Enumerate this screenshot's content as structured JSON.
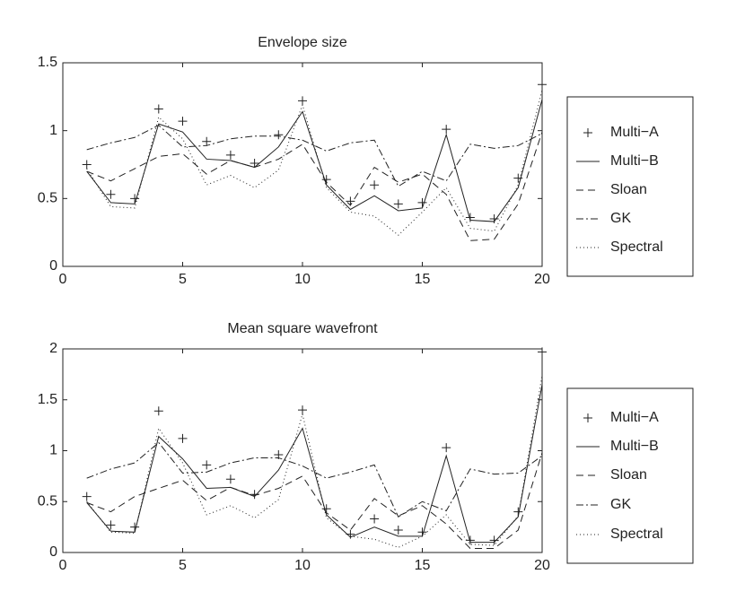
{
  "chart_data": [
    {
      "type": "line",
      "title": "Envelope size",
      "x": [
        1,
        2,
        3,
        4,
        5,
        6,
        7,
        8,
        9,
        10,
        11,
        12,
        13,
        14,
        15,
        16,
        17,
        18,
        19,
        20
      ],
      "xlim": [
        0,
        20
      ],
      "xticks": [
        0,
        5,
        10,
        15,
        20
      ],
      "ylim": [
        0,
        1.5
      ],
      "yticks": [
        0,
        0.5,
        1,
        1.5
      ],
      "legend": "outside-right",
      "series": [
        {
          "name": "Multi−A",
          "color": "#222222",
          "style": "plus",
          "values": [
            0.75,
            0.53,
            0.5,
            1.16,
            1.07,
            0.92,
            0.82,
            0.76,
            0.97,
            1.22,
            0.64,
            0.48,
            0.6,
            0.46,
            0.47,
            1.01,
            0.36,
            0.35,
            0.65,
            1.34
          ]
        },
        {
          "name": "Multi−B",
          "color": "#222222",
          "style": "solid",
          "values": [
            0.7,
            0.47,
            0.46,
            1.05,
            0.99,
            0.79,
            0.78,
            0.73,
            0.88,
            1.14,
            0.6,
            0.42,
            0.52,
            0.41,
            0.43,
            0.97,
            0.34,
            0.33,
            0.58,
            1.23
          ]
        },
        {
          "name": "Sloan",
          "color": "#222222",
          "style": "dashed",
          "values": [
            0.7,
            0.63,
            0.72,
            0.81,
            0.83,
            0.68,
            0.78,
            0.73,
            0.79,
            0.9,
            0.62,
            0.45,
            0.73,
            0.62,
            0.68,
            0.53,
            0.19,
            0.2,
            0.46,
            0.99
          ]
        },
        {
          "name": "GK",
          "color": "#222222",
          "style": "dashdot",
          "values": [
            0.86,
            0.91,
            0.95,
            1.04,
            0.88,
            0.89,
            0.94,
            0.96,
            0.96,
            0.93,
            0.85,
            0.91,
            0.93,
            0.59,
            0.7,
            0.63,
            0.9,
            0.87,
            0.89,
            0.98
          ]
        },
        {
          "name": "Spectral",
          "color": "#222222",
          "style": "dotted",
          "values": [
            0.72,
            0.44,
            0.43,
            1.1,
            0.94,
            0.6,
            0.67,
            0.58,
            0.71,
            1.19,
            0.58,
            0.4,
            0.37,
            0.23,
            0.4,
            0.58,
            0.28,
            0.26,
            0.6,
            1.3
          ]
        }
      ]
    },
    {
      "type": "line",
      "title": "Mean square wavefront",
      "x": [
        1,
        2,
        3,
        4,
        5,
        6,
        7,
        8,
        9,
        10,
        11,
        12,
        13,
        14,
        15,
        16,
        17,
        18,
        19,
        20
      ],
      "xlim": [
        0,
        20
      ],
      "xticks": [
        0,
        5,
        10,
        15,
        20
      ],
      "ylim": [
        0,
        2
      ],
      "yticks": [
        0,
        0.5,
        1,
        1.5,
        2
      ],
      "legend": "outside-right",
      "series": [
        {
          "name": "Multi−A",
          "color": "#222222",
          "style": "plus",
          "values": [
            0.55,
            0.27,
            0.25,
            1.39,
            1.12,
            0.86,
            0.72,
            0.57,
            0.96,
            1.4,
            0.43,
            0.18,
            0.33,
            0.22,
            0.2,
            1.03,
            0.12,
            0.12,
            0.4,
            1.97
          ]
        },
        {
          "name": "Multi−B",
          "color": "#222222",
          "style": "solid",
          "values": [
            0.49,
            0.21,
            0.2,
            1.14,
            0.92,
            0.63,
            0.64,
            0.55,
            0.81,
            1.22,
            0.37,
            0.15,
            0.25,
            0.16,
            0.16,
            0.95,
            0.1,
            0.1,
            0.35,
            1.65
          ]
        },
        {
          "name": "Sloan",
          "color": "#222222",
          "style": "dashed",
          "values": [
            0.49,
            0.4,
            0.55,
            0.63,
            0.71,
            0.51,
            0.64,
            0.56,
            0.63,
            0.75,
            0.39,
            0.22,
            0.53,
            0.36,
            0.46,
            0.28,
            0.04,
            0.04,
            0.22,
            0.98
          ]
        },
        {
          "name": "GK",
          "color": "#222222",
          "style": "dashdot",
          "values": [
            0.73,
            0.82,
            0.88,
            1.08,
            0.78,
            0.79,
            0.88,
            0.93,
            0.93,
            0.85,
            0.73,
            0.79,
            0.86,
            0.35,
            0.5,
            0.41,
            0.82,
            0.77,
            0.78,
            0.95
          ]
        },
        {
          "name": "Spectral",
          "color": "#222222",
          "style": "dotted",
          "values": [
            0.5,
            0.2,
            0.19,
            1.22,
            0.88,
            0.37,
            0.46,
            0.34,
            0.52,
            1.36,
            0.34,
            0.16,
            0.13,
            0.05,
            0.16,
            0.37,
            0.08,
            0.07,
            0.36,
            1.74
          ]
        }
      ]
    }
  ]
}
